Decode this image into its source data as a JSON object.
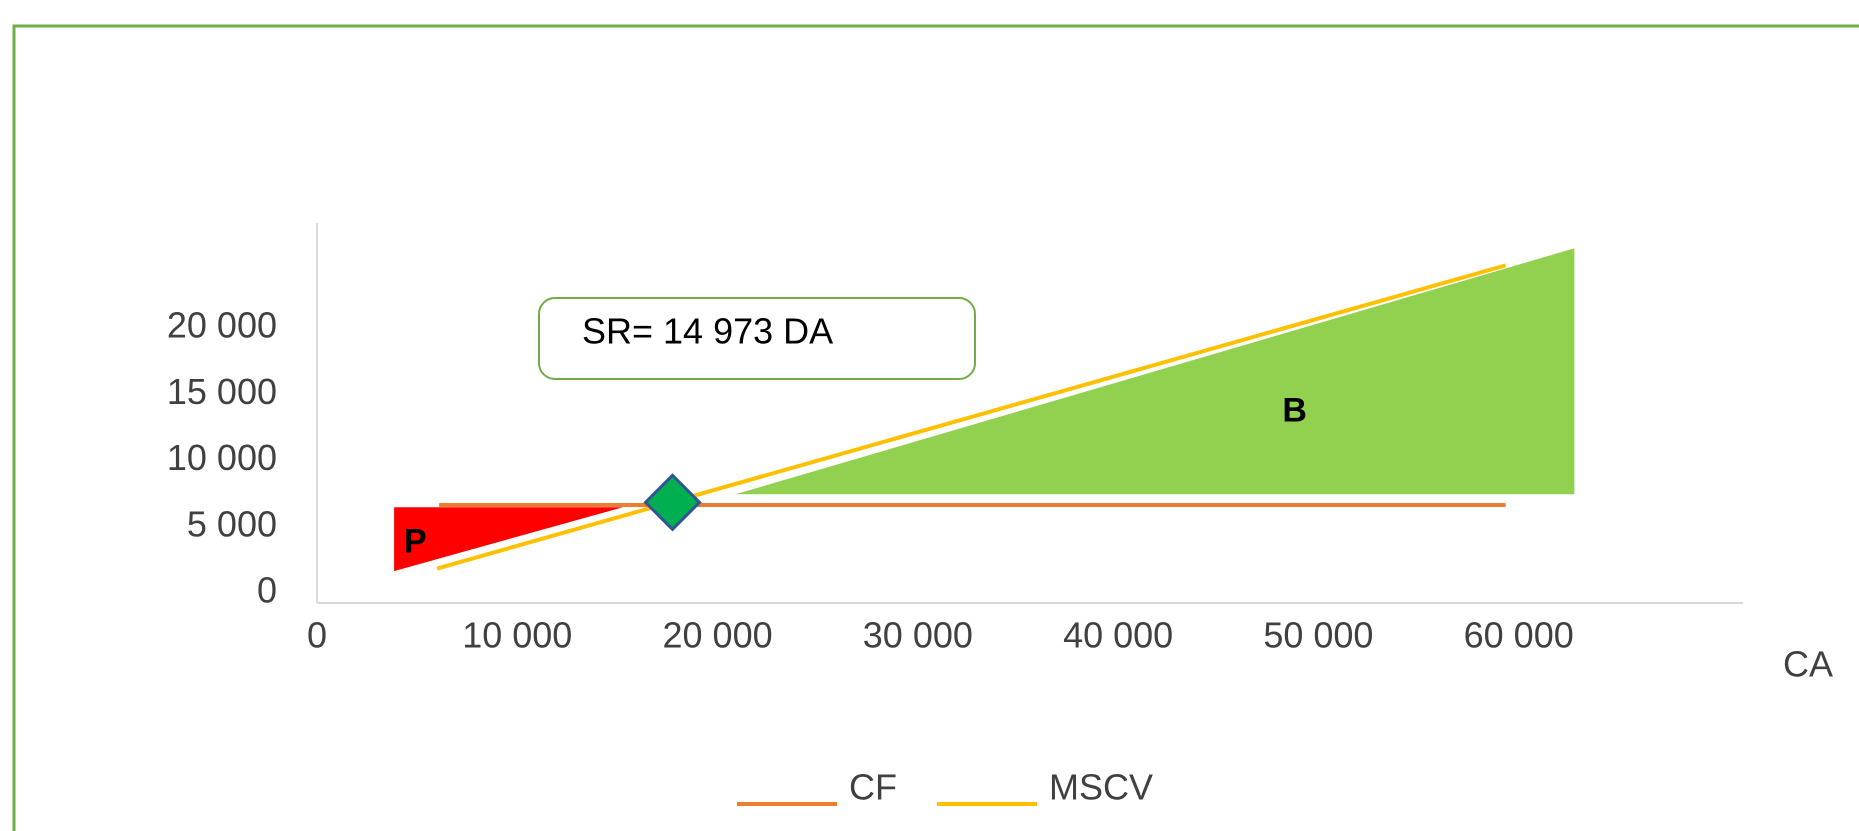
{
  "chart_data": {
    "type": "line",
    "x_label": "CA",
    "xlim": [
      0,
      71200
    ],
    "xticks": [
      0,
      {
        "value": 10000,
        "label": "10 000"
      },
      {
        "value": 20000,
        "label": "20 000"
      },
      {
        "value": 30000,
        "label": "30 000"
      },
      {
        "value": 40000,
        "label": "40 000"
      },
      {
        "value": 50000,
        "label": "50 000"
      },
      {
        "value": 60000,
        "label": "60 000"
      }
    ],
    "ylim": [
      0,
      28700
    ],
    "yticks": [
      0,
      {
        "value": 5000,
        "label": "5 000"
      },
      {
        "value": 10000,
        "label": "10 000"
      },
      {
        "value": 15000,
        "label": "15 000"
      },
      {
        "value": 20000,
        "label": "20 000"
      }
    ],
    "series": [
      {
        "name": "CF",
        "color": "#ed7d31",
        "x": [
          6100,
          59350
        ],
        "values": [
          7400,
          7400
        ]
      },
      {
        "name": "MSCV",
        "color": "#ffc000",
        "x": [
          6000,
          59350
        ],
        "values": [
          2600,
          25500
        ]
      }
    ],
    "areas": [
      {
        "name": "P",
        "color": "#ff0000",
        "x": [
          3850,
          15270,
          3850
        ],
        "values": [
          7230,
          7230,
          2410
        ]
      },
      {
        "name": "B",
        "color": "#92d050",
        "x": [
          20890,
          62780,
          62780
        ],
        "values": [
          8210,
          8210,
          26790
        ]
      }
    ],
    "breakeven": {
      "x": 17750,
      "y": 7600,
      "label": "SR= 14 973 DA",
      "color": "#00b050"
    },
    "legend": "bottom"
  }
}
